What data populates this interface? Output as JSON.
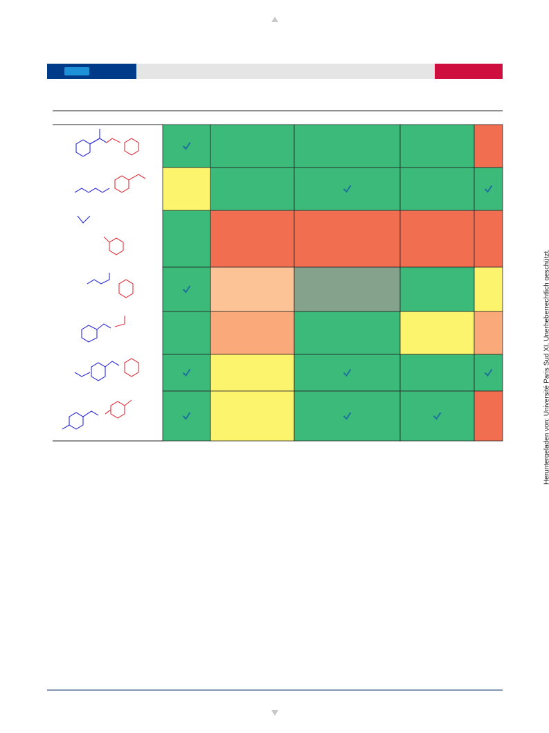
{
  "watermark": "Heruntergeladen von: Université Paris Sud XI. Unerheberrechtlich geschützt."
}
